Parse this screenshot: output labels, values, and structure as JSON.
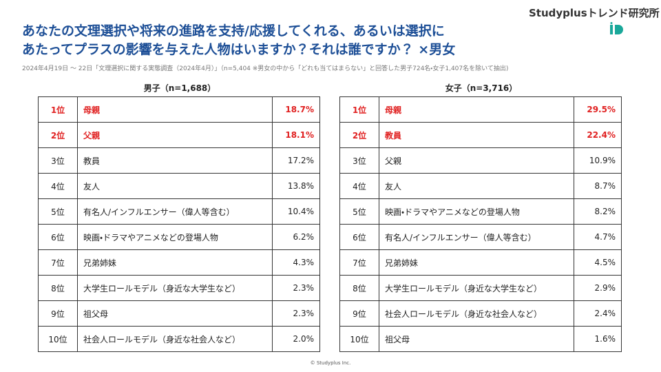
{
  "header": {
    "brand": "Studyplusトレンド研究所",
    "title_lines": [
      "あなたの文理選択や将来の進路を支持/応援してくれる、あるいは選択に",
      "あたってプラスの影響を与えた人物はいますか？それは誰ですか？ ×男女"
    ],
    "note": "2024年4月19日 〜 22日「文理選択に関する実態調査（2024年4月）」（n=5,404 ※男女の中から「どれも当てはまらない」と回答した男子724名・女子1,407名を除いて抽出)"
  },
  "tables": [
    {
      "title": "男子（n=1,688）",
      "rows": [
        [
          "1位",
          "母親",
          "18.7%"
        ],
        [
          "2位",
          "父親",
          "18.1%"
        ],
        [
          "3位",
          "教員",
          "17.2%"
        ],
        [
          "4位",
          "友人",
          "13.8%"
        ],
        [
          "5位",
          "有名人/インフルエンサー（偉人等含む）",
          "10.4%"
        ],
        [
          "6位",
          "映画・ドラマやアニメなどの登場人物",
          "6.2%"
        ],
        [
          "7位",
          "兄弟姉妹",
          "4.3%"
        ],
        [
          "8位",
          "大学生ロールモデル（身近な大学生など）",
          "2.3%"
        ],
        [
          "9位",
          "祖父母",
          "2.3%"
        ],
        [
          "10位",
          "社会人ロールモデル（身近な社会人など）",
          "2.0%"
        ]
      ]
    },
    {
      "title": "女子（n=3,716）",
      "rows": [
        [
          "1位",
          "母親",
          "29.5%"
        ],
        [
          "2位",
          "教員",
          "22.4%"
        ],
        [
          "3位",
          "父親",
          "10.9%"
        ],
        [
          "4位",
          "友人",
          "8.7%"
        ],
        [
          "5位",
          "映画・ドラマやアニメなどの登場人物",
          "8.2%"
        ],
        [
          "6位",
          "有名人/インフルエンサー（偉人等含む）",
          "4.7%"
        ],
        [
          "7位",
          "兄弟姉妹",
          "4.5%"
        ],
        [
          "8位",
          "大学生ロールモデル（身近な大学生など）",
          "2.9%"
        ],
        [
          "9位",
          "社会人ロールモデル（身近な社会人など）",
          "2.4%"
        ],
        [
          "10位",
          "祖父母",
          "1.6%"
        ]
      ]
    }
  ],
  "footer": "© Studyplus Inc."
}
